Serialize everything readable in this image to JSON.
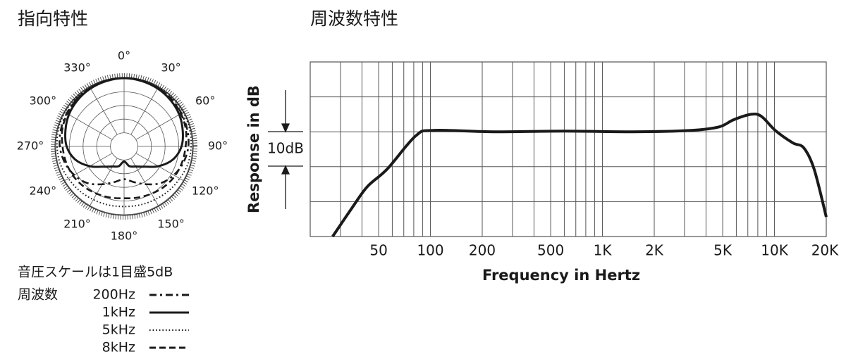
{
  "chart_data": [
    {
      "type": "polar",
      "title": "指向特性",
      "angle_ticks": [
        {
          "value": 0,
          "label": "0°"
        },
        {
          "value": 30,
          "label": "30°"
        },
        {
          "value": 60,
          "label": "60°"
        },
        {
          "value": 90,
          "label": "90°"
        },
        {
          "value": 120,
          "label": "120°"
        },
        {
          "value": 150,
          "label": "150°"
        },
        {
          "value": 180,
          "label": "180°"
        },
        {
          "value": 210,
          "label": "210°"
        },
        {
          "value": 240,
          "label": "240°"
        },
        {
          "value": 270,
          "label": "270°"
        },
        {
          "value": 300,
          "label": "300°"
        },
        {
          "value": 330,
          "label": "330°"
        }
      ],
      "rlim": [
        -25,
        0
      ],
      "rgrid": [
        -20,
        -15,
        -10,
        -5,
        0
      ],
      "theta": [
        0,
        15,
        30,
        45,
        60,
        75,
        90,
        105,
        120,
        135,
        150,
        165,
        180,
        195,
        210,
        225,
        240,
        255,
        270,
        285,
        300,
        315,
        330,
        345
      ],
      "scale_note": "音圧スケールは1目盛5dB",
      "legend_title": "周波数",
      "series": [
        {
          "name": "200Hz",
          "color": "#1a1a1a",
          "dash": "dash-dot",
          "values": [
            0,
            -0.1,
            -0.3,
            -0.5,
            -0.8,
            -1.1,
            -1.5,
            -2.5,
            -4,
            -6,
            -9,
            -11.5,
            -13,
            -11.5,
            -9,
            -6,
            -4,
            -2.5,
            -1.5,
            -1.1,
            -0.8,
            -0.5,
            -0.3,
            -0.1
          ]
        },
        {
          "name": "1kHz",
          "color": "#1a1a1a",
          "dash": "solid",
          "values": [
            0,
            -0.2,
            -0.5,
            -1,
            -1.7,
            -2.8,
            -4,
            -6.5,
            -10.5,
            -14.5,
            -16.5,
            -17.5,
            -19.5,
            -17.5,
            -16.5,
            -14.5,
            -10.5,
            -6.5,
            -4,
            -2.8,
            -1.7,
            -1,
            -0.5,
            -0.2
          ]
        },
        {
          "name": "5kHz",
          "color": "#1a1a1a",
          "dash": "dotted",
          "values": [
            0,
            0,
            0,
            0,
            0,
            -0.2,
            -0.5,
            -0.8,
            -1.5,
            -2,
            -2.5,
            -2.8,
            -3,
            -2.8,
            -2.5,
            -2,
            -1.5,
            -0.8,
            -0.5,
            -0.2,
            0,
            0,
            0,
            0
          ]
        },
        {
          "name": "8kHz",
          "color": "#1a1a1a",
          "dash": "dashed",
          "values": [
            0,
            -0.1,
            -0.3,
            -0.6,
            -1,
            -1.6,
            -2.5,
            -3,
            -3.5,
            -4.2,
            -5,
            -5.6,
            -6,
            -5.6,
            -5,
            -4.2,
            -3.5,
            -3,
            -2.5,
            -1.6,
            -1,
            -0.6,
            -0.3,
            -0.1
          ]
        }
      ]
    },
    {
      "type": "line",
      "title": "周波数特性",
      "x_label": "Frequency in Hertz",
      "y_label": "Response in dB",
      "annotation": "10dB",
      "xscale": "log",
      "xlim": [
        20,
        20000
      ],
      "xticks": [
        50,
        100,
        200,
        500,
        {
          "value": 1000,
          "label": "1K"
        },
        {
          "value": 2000,
          "label": "2K"
        },
        {
          "value": 5000,
          "label": "5K"
        },
        {
          "value": 10000,
          "label": "10K"
        },
        {
          "value": 20000,
          "label": "20K"
        }
      ],
      "x_grid": [
        30,
        40,
        60,
        70,
        80,
        90,
        300,
        400,
        600,
        700,
        800,
        900,
        3000,
        4000,
        6000,
        7000,
        8000,
        9000
      ],
      "ylim": [
        -30,
        20
      ],
      "y_grid": [
        -30,
        -20,
        -10,
        0,
        10,
        20
      ],
      "color": "#1a1a1a",
      "x": [
        27,
        35,
        43,
        56,
        82,
        104,
        233,
        600,
        1500,
        3270,
        4760,
        5760,
        7300,
        8400,
        10100,
        12800,
        14800,
        17000,
        20000
      ],
      "values": [
        -30,
        -21.8,
        -15.7,
        -10.7,
        -1.2,
        0.4,
        0,
        0.2,
        0,
        0.4,
        1.4,
        3.4,
        5,
        4.4,
        0.4,
        -3.2,
        -4.6,
        -10.7,
        -24.4
      ]
    }
  ]
}
